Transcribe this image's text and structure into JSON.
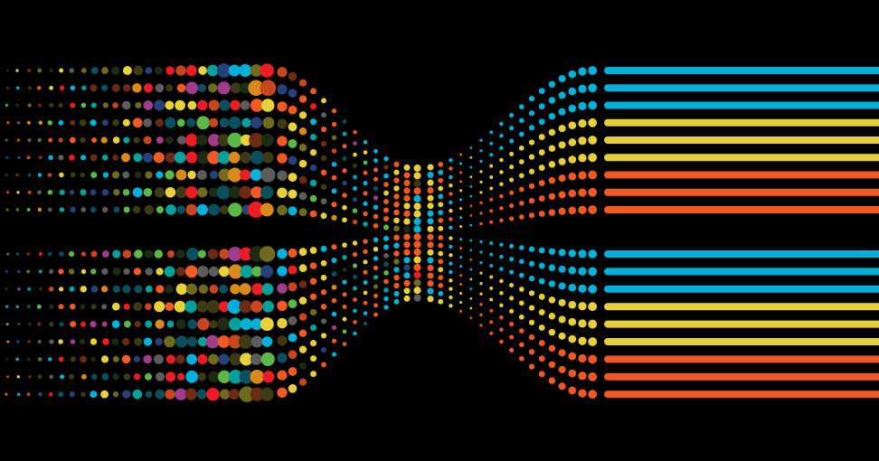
{
  "background": "#000000",
  "stripe_colors": [
    "#00b0d8",
    "#e6cf3a",
    "#f05a22"
  ],
  "mixed_palette": [
    "#e8d23a",
    "#f15a24",
    "#00b0d8",
    "#6e6a1e",
    "#0b4f5c",
    "#3c3a14",
    "#c8461e",
    "#5bb846",
    "#a03c8c",
    "#27407a",
    "#00a19a",
    "#ed1c24",
    "#d98a1a",
    "#5c5c5c",
    "#6b2a14",
    "#1d2a14"
  ]
}
